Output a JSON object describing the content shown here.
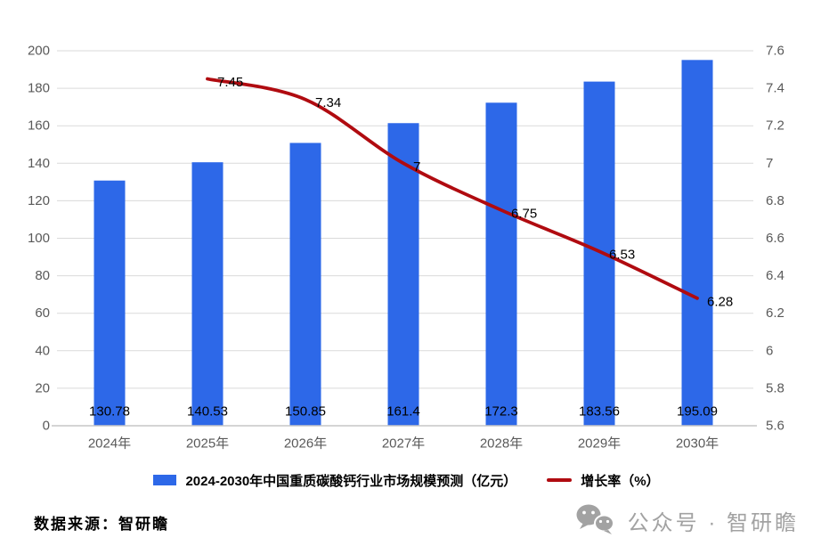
{
  "chart_data": {
    "type": "bar",
    "subtype": "bar-line-combo",
    "title": "",
    "categories": [
      "2024年",
      "2025年",
      "2026年",
      "2027年",
      "2028年",
      "2029年",
      "2030年"
    ],
    "series": [
      {
        "name": "2024-2030年中国重质碳酸钙行业市场规模预测（亿元）",
        "type": "bar",
        "axis": "left",
        "values": [
          130.78,
          140.53,
          150.85,
          161.4,
          172.3,
          183.56,
          195.09
        ],
        "value_labels": [
          "130.78",
          "140.53",
          "150.85",
          "161.4",
          "172.3",
          "183.56",
          "195.09"
        ]
      },
      {
        "name": "增长率（%）",
        "type": "line",
        "axis": "right",
        "start_category_index": 1,
        "values": [
          7.45,
          7.34,
          7.0,
          6.75,
          6.53,
          6.28
        ],
        "value_labels": [
          "7.45",
          "7.34",
          "7",
          "6.75",
          "6.53",
          "6.28"
        ]
      }
    ],
    "left_axis": {
      "min": 0,
      "max": 200,
      "step": 20,
      "tick_labels": [
        "200",
        "180",
        "160",
        "140",
        "120",
        "100",
        "80",
        "60",
        "40",
        "20",
        "0"
      ]
    },
    "right_axis": {
      "min": 5.6,
      "max": 7.6,
      "step": 0.2,
      "tick_labels": [
        "7.6",
        "7.4",
        "7.2",
        "7",
        "6.8",
        "6.6",
        "6.4",
        "6.2",
        "6",
        "5.8",
        "5.6"
      ]
    },
    "grid": "horizontal",
    "legend_position": "bottom"
  },
  "legend": {
    "bar_label": "2024-2030年中国重质碳酸钙行业市场规模预测（亿元）",
    "line_label": "增长率（%）"
  },
  "footer": {
    "source": "数据来源：智研瞻",
    "watermark": "公众号 · 智研瞻"
  },
  "colors": {
    "bar": "#2D68E8",
    "line": "#B00B10",
    "axis_text": "#595959",
    "grid": "#DADADA",
    "axis_line": "#C6C6C6",
    "data_label": "#000000",
    "watermark": "#A2A2A2"
  }
}
